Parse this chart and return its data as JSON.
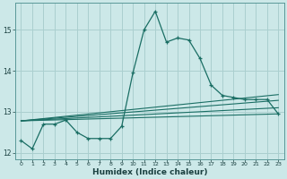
{
  "xlabel": "Humidex (Indice chaleur)",
  "background_color": "#cce8e8",
  "grid_color": "#aacfcf",
  "line_color": "#1a6e64",
  "xlim": [
    -0.5,
    23.5
  ],
  "ylim": [
    11.85,
    15.65
  ],
  "yticks": [
    12,
    13,
    14,
    15
  ],
  "xticks": [
    0,
    1,
    2,
    3,
    4,
    5,
    6,
    7,
    8,
    9,
    10,
    11,
    12,
    13,
    14,
    15,
    16,
    17,
    18,
    19,
    20,
    21,
    22,
    23
  ],
  "main_series": [
    [
      0,
      12.3
    ],
    [
      1,
      12.1
    ],
    [
      2,
      12.7
    ],
    [
      3,
      12.7
    ],
    [
      4,
      12.8
    ],
    [
      5,
      12.5
    ],
    [
      6,
      12.35
    ],
    [
      7,
      12.35
    ],
    [
      8,
      12.35
    ],
    [
      9,
      12.65
    ],
    [
      10,
      13.95
    ],
    [
      11,
      15.0
    ],
    [
      12,
      15.45
    ],
    [
      13,
      14.7
    ],
    [
      14,
      14.8
    ],
    [
      15,
      14.75
    ],
    [
      16,
      14.3
    ],
    [
      17,
      13.65
    ],
    [
      18,
      13.4
    ],
    [
      19,
      13.35
    ],
    [
      20,
      13.3
    ],
    [
      21,
      13.3
    ],
    [
      22,
      13.3
    ],
    [
      23,
      12.95
    ]
  ],
  "regression_lines": [
    {
      "x": [
        0,
        23
      ],
      "y": [
        12.78,
        12.95
      ]
    },
    {
      "x": [
        0,
        23
      ],
      "y": [
        12.78,
        13.1
      ]
    },
    {
      "x": [
        0,
        23
      ],
      "y": [
        12.78,
        13.28
      ]
    },
    {
      "x": [
        0,
        23
      ],
      "y": [
        12.78,
        13.42
      ]
    }
  ]
}
